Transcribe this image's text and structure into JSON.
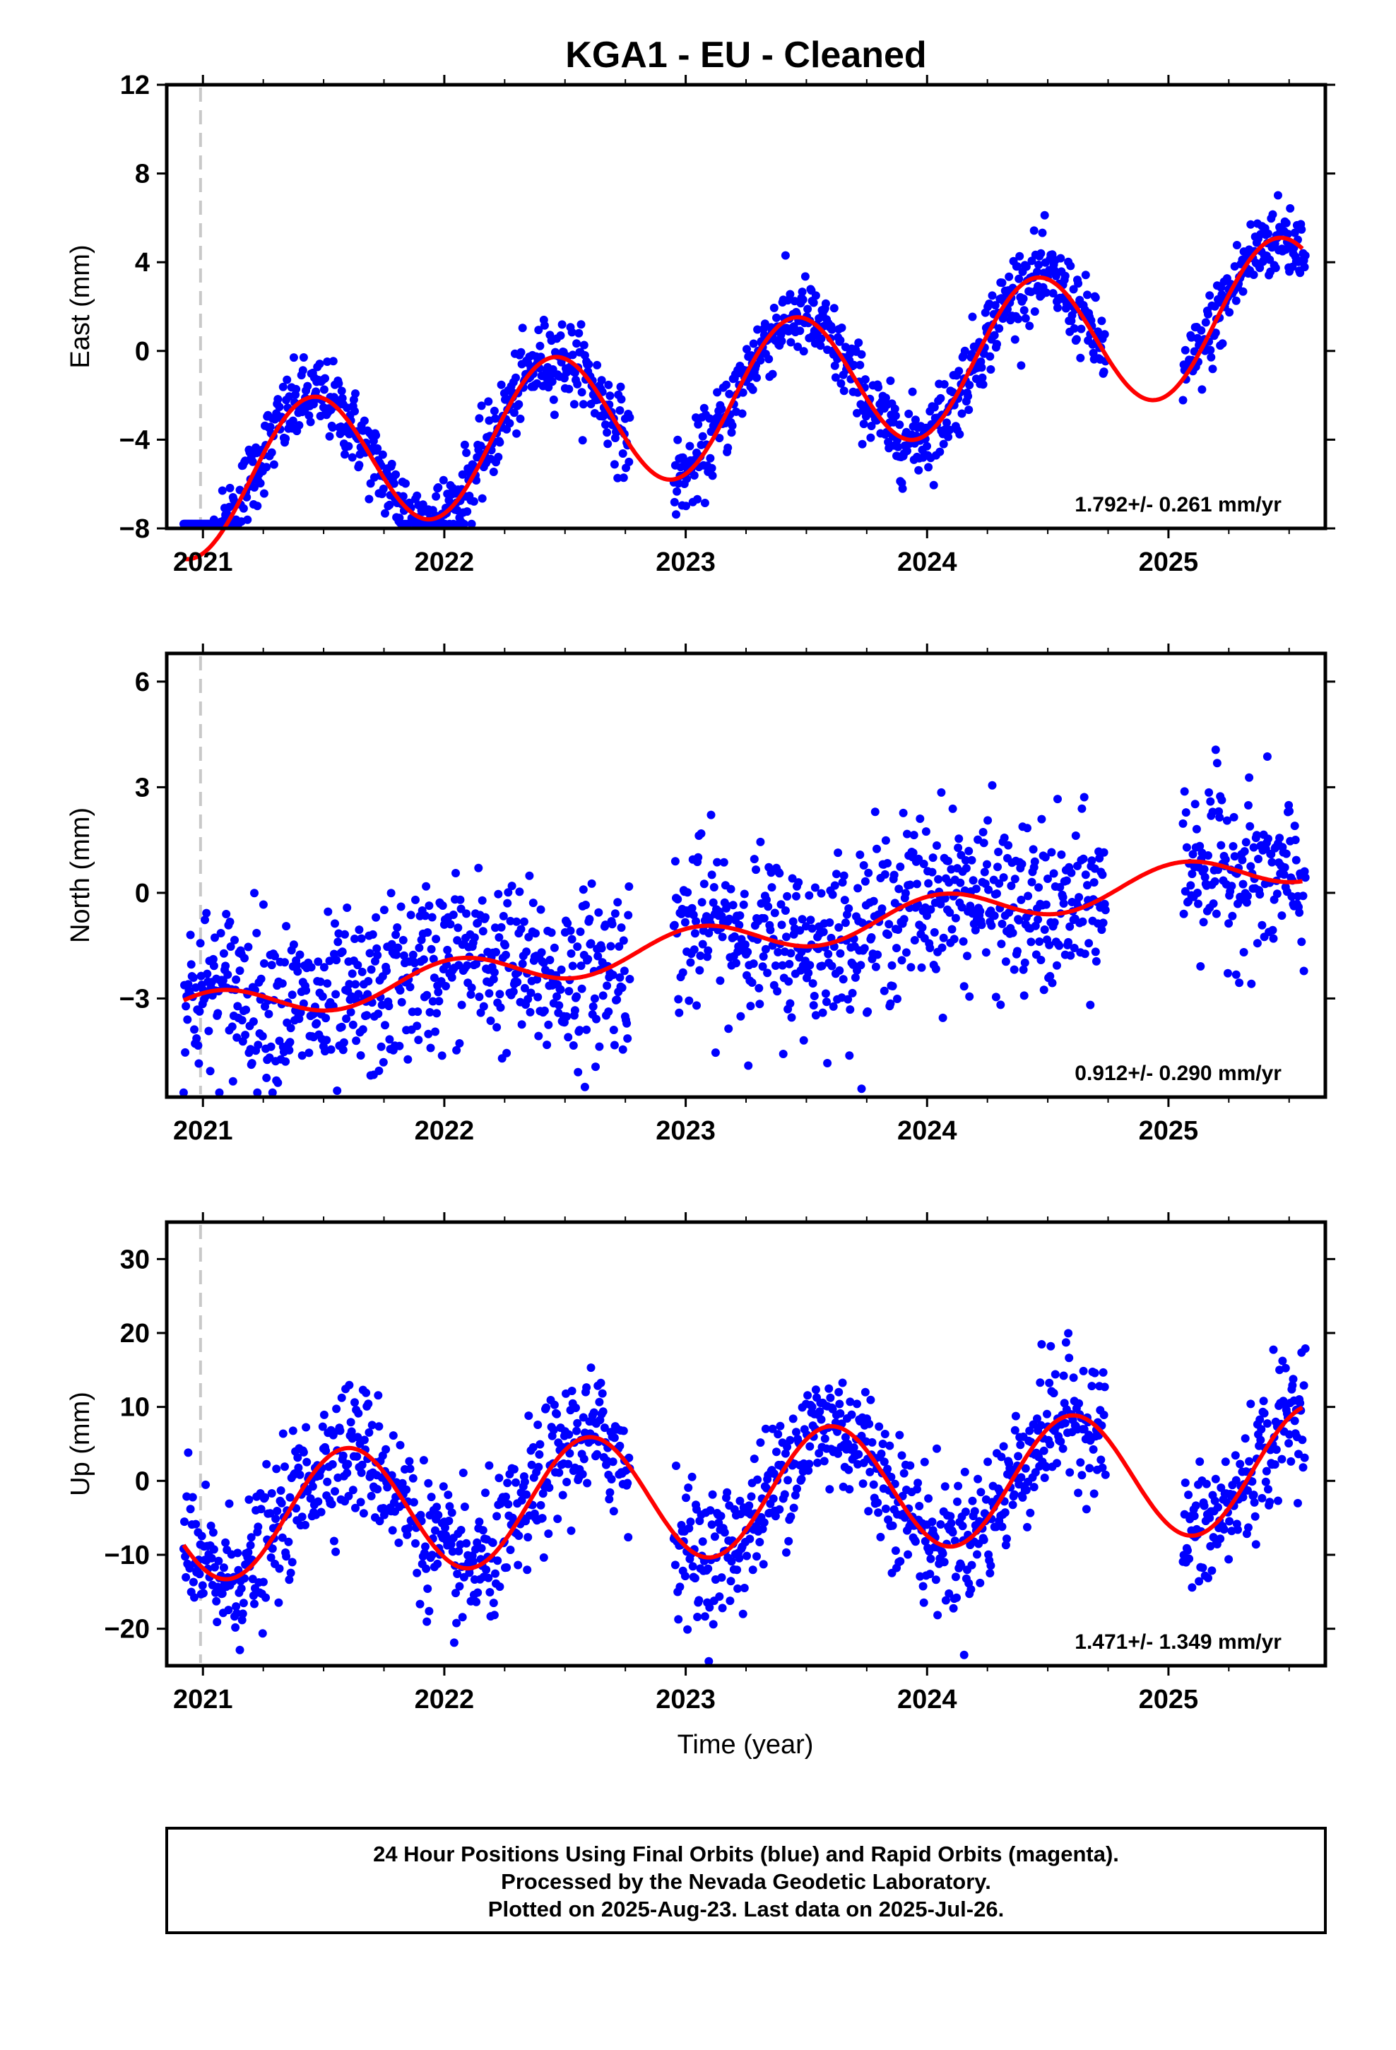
{
  "title": "KGA1  - EU - Cleaned",
  "x_axis_label": "Time (year)",
  "x_ticks": [
    "2021",
    "2022",
    "2023",
    "2024",
    "2025"
  ],
  "footer": {
    "line1": "24 Hour Positions Using Final Orbits (blue) and Rapid Orbits (magenta).",
    "line2": "Processed by the Nevada Geodetic Laboratory.",
    "line3": "Plotted on 2025-Aug-23. Last data on 2025-Jul-26."
  },
  "colors": {
    "points": "#0000ff",
    "model": "#ff0000",
    "marker": "#c8c8c8",
    "frame": "#000000"
  },
  "chart_data": [
    {
      "type": "scatter",
      "ylabel": "East (mm)",
      "xlim": [
        2020.85,
        2025.65
      ],
      "ylim": [
        -8,
        12
      ],
      "yticks": [
        "-8",
        "-4",
        "0",
        "4",
        "8",
        "12"
      ],
      "rate_label": "1.792+/- 0.261 mm/yr",
      "vertical_marker_x": 2020.99,
      "gaps": [
        [
          2022.77,
          2022.95
        ],
        [
          2024.74,
          2025.06
        ]
      ],
      "model": {
        "amplitude": 3.2,
        "phase_peak": 2021.45,
        "y0": -2.5,
        "trend": 1.792
      },
      "noise": 0.9
    },
    {
      "type": "scatter",
      "ylabel": "North (mm)",
      "xlim": [
        2020.85,
        2025.65
      ],
      "ylim": [
        -5.8,
        6.8
      ],
      "yticks": [
        "-3",
        "0",
        "3",
        "6"
      ],
      "rate_label": "0.912+/- 0.290 mm/yr",
      "vertical_marker_x": 2020.99,
      "gaps": [
        [
          2022.77,
          2022.95
        ],
        [
          2024.74,
          2025.06
        ]
      ],
      "model": {
        "amplitude": 0.5,
        "phase_peak": 2021.05,
        "y0": -1.5,
        "trend": 0.912
      },
      "noise": 1.2
    },
    {
      "type": "scatter",
      "ylabel": "Up (mm)",
      "xlim": [
        2020.85,
        2025.65
      ],
      "ylim": [
        -25,
        35
      ],
      "yticks": [
        "-20",
        "-10",
        "0",
        "10",
        "20",
        "30"
      ],
      "rate_label": "1.471+/- 1.349 mm/yr",
      "vertical_marker_x": 2020.99,
      "gaps": [
        [
          2022.77,
          2022.95
        ],
        [
          2024.74,
          2025.06
        ]
      ],
      "model": {
        "amplitude": 8.5,
        "phase_peak": 2021.6,
        "y0": -2.0,
        "trend": 1.471
      },
      "noise": 4.5
    }
  ]
}
